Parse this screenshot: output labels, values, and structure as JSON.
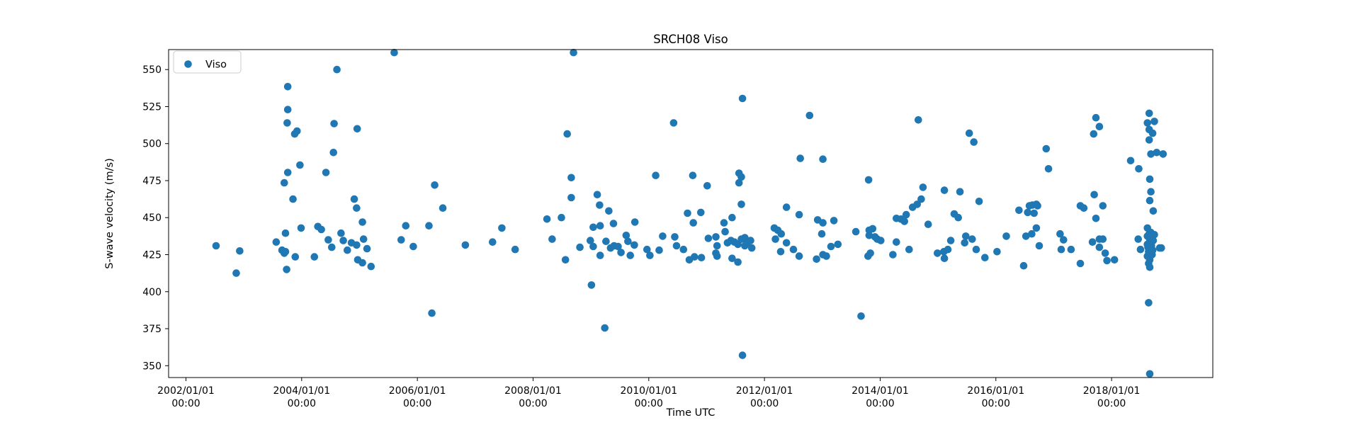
{
  "legend": {
    "label": "Viso"
  },
  "chart_data": {
    "type": "scatter",
    "title": "SRCH08 Viso",
    "xlabel": "Time UTC",
    "ylabel": "S-wave velocity (m/s)",
    "legend_position": "upper left",
    "grid": false,
    "marker_color": "#1f77b4",
    "xlim": [
      2001.7,
      2019.75
    ],
    "ylim": [
      342.0,
      563.5
    ],
    "y_ticks": [
      350,
      375,
      400,
      425,
      450,
      475,
      500,
      525,
      550
    ],
    "x_ticks": [
      {
        "value": 2002,
        "line1": "2002/01/01",
        "line2": "00:00"
      },
      {
        "value": 2004,
        "line1": "2004/01/01",
        "line2": "00:00"
      },
      {
        "value": 2006,
        "line1": "2006/01/01",
        "line2": "00:00"
      },
      {
        "value": 2008,
        "line1": "2008/01/01",
        "line2": "00:00"
      },
      {
        "value": 2010,
        "line1": "2010/01/01",
        "line2": "00:00"
      },
      {
        "value": 2012,
        "line1": "2012/01/01",
        "line2": "00:00"
      },
      {
        "value": 2014,
        "line1": "2014/01/01",
        "line2": "00:00"
      },
      {
        "value": 2016,
        "line1": "2016/01/01",
        "line2": "00:00"
      },
      {
        "value": 2018,
        "line1": "2018/01/01",
        "line2": "00:00"
      }
    ],
    "series": [
      {
        "name": "Viso",
        "points": [
          [
            2002.52,
            431
          ],
          [
            2002.87,
            412.5
          ],
          [
            2002.93,
            427.5
          ],
          [
            2003.56,
            433.5
          ],
          [
            2003.66,
            428
          ],
          [
            2003.7,
            426
          ],
          [
            2003.7,
            473.5
          ],
          [
            2003.72,
            439.5
          ],
          [
            2003.72,
            427
          ],
          [
            2003.74,
            415
          ],
          [
            2003.75,
            514
          ],
          [
            2003.76,
            538.5
          ],
          [
            2003.76,
            523
          ],
          [
            2003.76,
            480.5
          ],
          [
            2003.85,
            462.5
          ],
          [
            2003.88,
            506.5
          ],
          [
            2003.89,
            423.5
          ],
          [
            2003.92,
            508.5
          ],
          [
            2003.97,
            485.5
          ],
          [
            2003.99,
            443
          ],
          [
            2004.22,
            423.5
          ],
          [
            2004.28,
            444
          ],
          [
            2004.34,
            442
          ],
          [
            2004.42,
            480.5
          ],
          [
            2004.46,
            435
          ],
          [
            2004.52,
            430
          ],
          [
            2004.55,
            494
          ],
          [
            2004.56,
            513.5
          ],
          [
            2004.61,
            550
          ],
          [
            2004.68,
            439.5
          ],
          [
            2004.72,
            434.5
          ],
          [
            2004.79,
            428
          ],
          [
            2004.86,
            433
          ],
          [
            2004.91,
            462.5
          ],
          [
            2004.95,
            456.5
          ],
          [
            2004.95,
            431.5
          ],
          [
            2004.96,
            510
          ],
          [
            2004.97,
            421.5
          ],
          [
            2005.05,
            447
          ],
          [
            2005.05,
            419.5
          ],
          [
            2005.07,
            435.5
          ],
          [
            2005.13,
            429
          ],
          [
            2005.2,
            417
          ],
          [
            2005.6,
            561.5
          ],
          [
            2005.72,
            435
          ],
          [
            2005.8,
            444.5
          ],
          [
            2005.93,
            430.5
          ],
          [
            2006.2,
            444.5
          ],
          [
            2006.25,
            385.5
          ],
          [
            2006.3,
            472
          ],
          [
            2006.44,
            456.5
          ],
          [
            2006.83,
            431.5
          ],
          [
            2007.3,
            433.5
          ],
          [
            2007.46,
            443
          ],
          [
            2007.69,
            428.5
          ],
          [
            2008.24,
            449
          ],
          [
            2008.33,
            435.5
          ],
          [
            2008.49,
            450
          ],
          [
            2008.56,
            421.5
          ],
          [
            2008.59,
            506.5
          ],
          [
            2008.66,
            477
          ],
          [
            2008.66,
            463.5
          ],
          [
            2008.7,
            561.5
          ],
          [
            2008.81,
            430
          ],
          [
            2008.99,
            434.5
          ],
          [
            2009.01,
            404.5
          ],
          [
            2009.04,
            443.5
          ],
          [
            2009.04,
            430.5
          ],
          [
            2009.11,
            465.5
          ],
          [
            2009.15,
            458.5
          ],
          [
            2009.16,
            444.5
          ],
          [
            2009.16,
            424.5
          ],
          [
            2009.24,
            375.5
          ],
          [
            2009.26,
            434
          ],
          [
            2009.31,
            454.5
          ],
          [
            2009.34,
            429.5
          ],
          [
            2009.39,
            446
          ],
          [
            2009.4,
            431
          ],
          [
            2009.47,
            430.5
          ],
          [
            2009.52,
            426.5
          ],
          [
            2009.61,
            438
          ],
          [
            2009.64,
            434
          ],
          [
            2009.68,
            424.5
          ],
          [
            2009.75,
            431.5
          ],
          [
            2009.76,
            447
          ],
          [
            2009.97,
            428.5
          ],
          [
            2010.02,
            424.5
          ],
          [
            2010.12,
            478.5
          ],
          [
            2010.18,
            428
          ],
          [
            2010.24,
            437.5
          ],
          [
            2010.43,
            514
          ],
          [
            2010.45,
            437
          ],
          [
            2010.48,
            431
          ],
          [
            2010.6,
            428.5
          ],
          [
            2010.67,
            453
          ],
          [
            2010.7,
            421.5
          ],
          [
            2010.76,
            478.5
          ],
          [
            2010.77,
            446.5
          ],
          [
            2010.79,
            423.5
          ],
          [
            2010.9,
            453.5
          ],
          [
            2010.91,
            423
          ],
          [
            2011.01,
            471.5
          ],
          [
            2011.03,
            436
          ],
          [
            2011.16,
            437
          ],
          [
            2011.16,
            426
          ],
          [
            2011.18,
            431
          ],
          [
            2011.18,
            424
          ],
          [
            2011.3,
            446.5
          ],
          [
            2011.32,
            440.5
          ],
          [
            2011.36,
            433
          ],
          [
            2011.42,
            434.5
          ],
          [
            2011.44,
            450
          ],
          [
            2011.44,
            422.5
          ],
          [
            2011.48,
            433.5
          ],
          [
            2011.54,
            432
          ],
          [
            2011.54,
            420
          ],
          [
            2011.56,
            480
          ],
          [
            2011.56,
            473.5
          ],
          [
            2011.6,
            477.5
          ],
          [
            2011.6,
            459
          ],
          [
            2011.6,
            435.5
          ],
          [
            2011.62,
            530.5
          ],
          [
            2011.62,
            357
          ],
          [
            2011.66,
            436.5
          ],
          [
            2011.66,
            431
          ],
          [
            2011.7,
            433
          ],
          [
            2011.76,
            434.5
          ],
          [
            2011.78,
            429.5
          ],
          [
            2012.17,
            443
          ],
          [
            2012.19,
            435.5
          ],
          [
            2012.23,
            441.5
          ],
          [
            2012.28,
            427
          ],
          [
            2012.29,
            439
          ],
          [
            2012.38,
            457
          ],
          [
            2012.38,
            433
          ],
          [
            2012.5,
            428.5
          ],
          [
            2012.6,
            452
          ],
          [
            2012.6,
            424
          ],
          [
            2012.62,
            490
          ],
          [
            2012.78,
            519
          ],
          [
            2012.9,
            422
          ],
          [
            2012.92,
            448.5
          ],
          [
            2012.99,
            439
          ],
          [
            2013.01,
            489.5
          ],
          [
            2013.01,
            446.5
          ],
          [
            2013.01,
            425
          ],
          [
            2013.07,
            424
          ],
          [
            2013.15,
            430.5
          ],
          [
            2013.2,
            448
          ],
          [
            2013.27,
            432
          ],
          [
            2013.58,
            440.5
          ],
          [
            2013.67,
            383.5
          ],
          [
            2013.79,
            424
          ],
          [
            2013.8,
            475.5
          ],
          [
            2013.81,
            441.5
          ],
          [
            2013.81,
            438
          ],
          [
            2013.83,
            426
          ],
          [
            2013.87,
            442.5
          ],
          [
            2013.91,
            437
          ],
          [
            2013.95,
            435.5
          ],
          [
            2014.01,
            434.5
          ],
          [
            2014.22,
            425
          ],
          [
            2014.28,
            449.5
          ],
          [
            2014.28,
            433.5
          ],
          [
            2014.36,
            449
          ],
          [
            2014.42,
            447.5
          ],
          [
            2014.45,
            452
          ],
          [
            2014.5,
            428.5
          ],
          [
            2014.56,
            457
          ],
          [
            2014.64,
            459
          ],
          [
            2014.66,
            516
          ],
          [
            2014.71,
            462.5
          ],
          [
            2014.74,
            470.5
          ],
          [
            2014.83,
            445.5
          ],
          [
            2014.99,
            426
          ],
          [
            2015.1,
            427
          ],
          [
            2015.11,
            468.5
          ],
          [
            2015.11,
            422.5
          ],
          [
            2015.17,
            428.5
          ],
          [
            2015.22,
            434.5
          ],
          [
            2015.28,
            452.5
          ],
          [
            2015.35,
            450
          ],
          [
            2015.38,
            467.5
          ],
          [
            2015.46,
            433
          ],
          [
            2015.48,
            437.5
          ],
          [
            2015.54,
            507
          ],
          [
            2015.59,
            435.5
          ],
          [
            2015.62,
            501
          ],
          [
            2015.66,
            428.5
          ],
          [
            2015.71,
            461
          ],
          [
            2015.81,
            423
          ],
          [
            2016.02,
            427
          ],
          [
            2016.18,
            437.5
          ],
          [
            2016.4,
            455
          ],
          [
            2016.48,
            417.5
          ],
          [
            2016.52,
            437.5
          ],
          [
            2016.55,
            453.5
          ],
          [
            2016.58,
            458
          ],
          [
            2016.62,
            439
          ],
          [
            2016.63,
            458.5
          ],
          [
            2016.66,
            453
          ],
          [
            2016.7,
            459
          ],
          [
            2016.7,
            443
          ],
          [
            2016.72,
            458
          ],
          [
            2016.75,
            431
          ],
          [
            2016.87,
            496.5
          ],
          [
            2016.91,
            483
          ],
          [
            2017.11,
            439
          ],
          [
            2017.13,
            428.5
          ],
          [
            2017.17,
            435
          ],
          [
            2017.3,
            428.5
          ],
          [
            2017.46,
            458
          ],
          [
            2017.46,
            419
          ],
          [
            2017.52,
            456.5
          ],
          [
            2017.67,
            433.5
          ],
          [
            2017.69,
            506.5
          ],
          [
            2017.7,
            465.5
          ],
          [
            2017.73,
            517.5
          ],
          [
            2017.73,
            449.5
          ],
          [
            2017.79,
            511.5
          ],
          [
            2017.79,
            435.5
          ],
          [
            2017.79,
            430
          ],
          [
            2017.85,
            458
          ],
          [
            2017.85,
            435.5
          ],
          [
            2017.89,
            426
          ],
          [
            2017.92,
            421
          ],
          [
            2018.05,
            421.5
          ],
          [
            2018.33,
            488.5
          ],
          [
            2018.46,
            435.5
          ],
          [
            2018.47,
            483
          ],
          [
            2018.5,
            428.5
          ],
          [
            2018.62,
            514
          ],
          [
            2018.62,
            443
          ],
          [
            2018.62,
            437.5
          ],
          [
            2018.62,
            432
          ],
          [
            2018.62,
            424
          ],
          [
            2018.63,
            430
          ],
          [
            2018.64,
            427
          ],
          [
            2018.64,
            419
          ],
          [
            2018.64,
            392.5
          ],
          [
            2018.65,
            520.5
          ],
          [
            2018.65,
            509.5
          ],
          [
            2018.65,
            502.5
          ],
          [
            2018.65,
            439
          ],
          [
            2018.65,
            423
          ],
          [
            2018.66,
            476
          ],
          [
            2018.66,
            461.5
          ],
          [
            2018.66,
            435.5
          ],
          [
            2018.66,
            421.5
          ],
          [
            2018.66,
            416.5
          ],
          [
            2018.66,
            344.5
          ],
          [
            2018.67,
            433
          ],
          [
            2018.67,
            426
          ],
          [
            2018.68,
            493
          ],
          [
            2018.68,
            467.5
          ],
          [
            2018.68,
            440
          ],
          [
            2018.68,
            429.5
          ],
          [
            2018.69,
            431
          ],
          [
            2018.7,
            425
          ],
          [
            2018.71,
            507
          ],
          [
            2018.71,
            428
          ],
          [
            2018.72,
            454.5
          ],
          [
            2018.72,
            434.5
          ],
          [
            2018.74,
            515
          ],
          [
            2018.74,
            438.5
          ],
          [
            2018.78,
            494
          ],
          [
            2018.83,
            429.5
          ],
          [
            2018.86,
            429.5
          ],
          [
            2018.89,
            493
          ]
        ]
      }
    ]
  }
}
